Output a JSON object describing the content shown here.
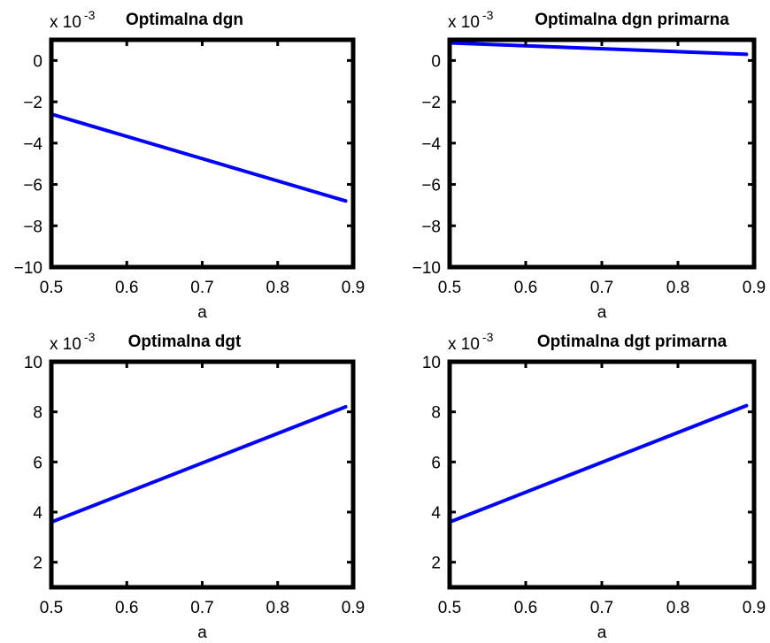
{
  "chart_data": [
    {
      "type": "line",
      "title": "Optimalna dgn",
      "xlabel": "a",
      "ylabel": "",
      "exponent_base": "x 10",
      "exponent": "-3",
      "xlim": [
        0.5,
        0.9
      ],
      "ylim": [
        -10,
        1
      ],
      "xticks": [
        0.5,
        0.6,
        0.7,
        0.8,
        0.9
      ],
      "xtick_labels": [
        "0.5",
        "0.6",
        "0.7",
        "0.8",
        "0.9"
      ],
      "yticks": [
        0,
        -2,
        -4,
        -6,
        -8,
        -10
      ],
      "ytick_labels": [
        "0",
        "−2",
        "−4",
        "−6",
        "−8",
        "−10"
      ],
      "grid": false,
      "series": [
        {
          "color": "#0000ff",
          "x": [
            0.5,
            0.89
          ],
          "y": [
            -2.6,
            -6.8
          ]
        }
      ]
    },
    {
      "type": "line",
      "title": "Optimalna dgn primarna",
      "xlabel": "a",
      "ylabel": "",
      "exponent_base": "x 10",
      "exponent": "-3",
      "xlim": [
        0.5,
        0.9
      ],
      "ylim": [
        -10,
        1
      ],
      "xticks": [
        0.5,
        0.6,
        0.7,
        0.8,
        0.9
      ],
      "xtick_labels": [
        "0.5",
        "0.6",
        "0.7",
        "0.8",
        "0.9"
      ],
      "yticks": [
        0,
        -2,
        -4,
        -6,
        -8,
        -10
      ],
      "ytick_labels": [
        "0",
        "−2",
        "−4",
        "−6",
        "−8",
        "−10"
      ],
      "grid": false,
      "series": [
        {
          "color": "#0000ff",
          "x": [
            0.5,
            0.89
          ],
          "y": [
            0.85,
            0.3
          ]
        }
      ]
    },
    {
      "type": "line",
      "title": "Optimalna dgt",
      "xlabel": "a",
      "ylabel": "",
      "exponent_base": "x 10",
      "exponent": "-3",
      "xlim": [
        0.5,
        0.9
      ],
      "ylim": [
        1,
        10
      ],
      "xticks": [
        0.5,
        0.6,
        0.7,
        0.8,
        0.9
      ],
      "xtick_labels": [
        "0.5",
        "0.6",
        "0.7",
        "0.8",
        "0.9"
      ],
      "yticks": [
        10,
        8,
        6,
        4,
        2
      ],
      "ytick_labels": [
        "10",
        "8",
        "6",
        "4",
        "2"
      ],
      "grid": false,
      "series": [
        {
          "color": "#0000ff",
          "x": [
            0.5,
            0.89
          ],
          "y": [
            3.6,
            8.2
          ]
        }
      ]
    },
    {
      "type": "line",
      "title": "Optimalna dgt primarna",
      "xlabel": "a",
      "ylabel": "",
      "exponent_base": "x 10",
      "exponent": "-3",
      "xlim": [
        0.5,
        0.9
      ],
      "ylim": [
        1,
        10
      ],
      "xticks": [
        0.5,
        0.6,
        0.7,
        0.8,
        0.9
      ],
      "xtick_labels": [
        "0.5",
        "0.6",
        "0.7",
        "0.8",
        "0.9"
      ],
      "yticks": [
        10,
        8,
        6,
        4,
        2
      ],
      "ytick_labels": [
        "10",
        "8",
        "6",
        "4",
        "2"
      ],
      "grid": false,
      "series": [
        {
          "color": "#0000ff",
          "x": [
            0.5,
            0.89
          ],
          "y": [
            3.6,
            8.25
          ]
        }
      ]
    }
  ]
}
